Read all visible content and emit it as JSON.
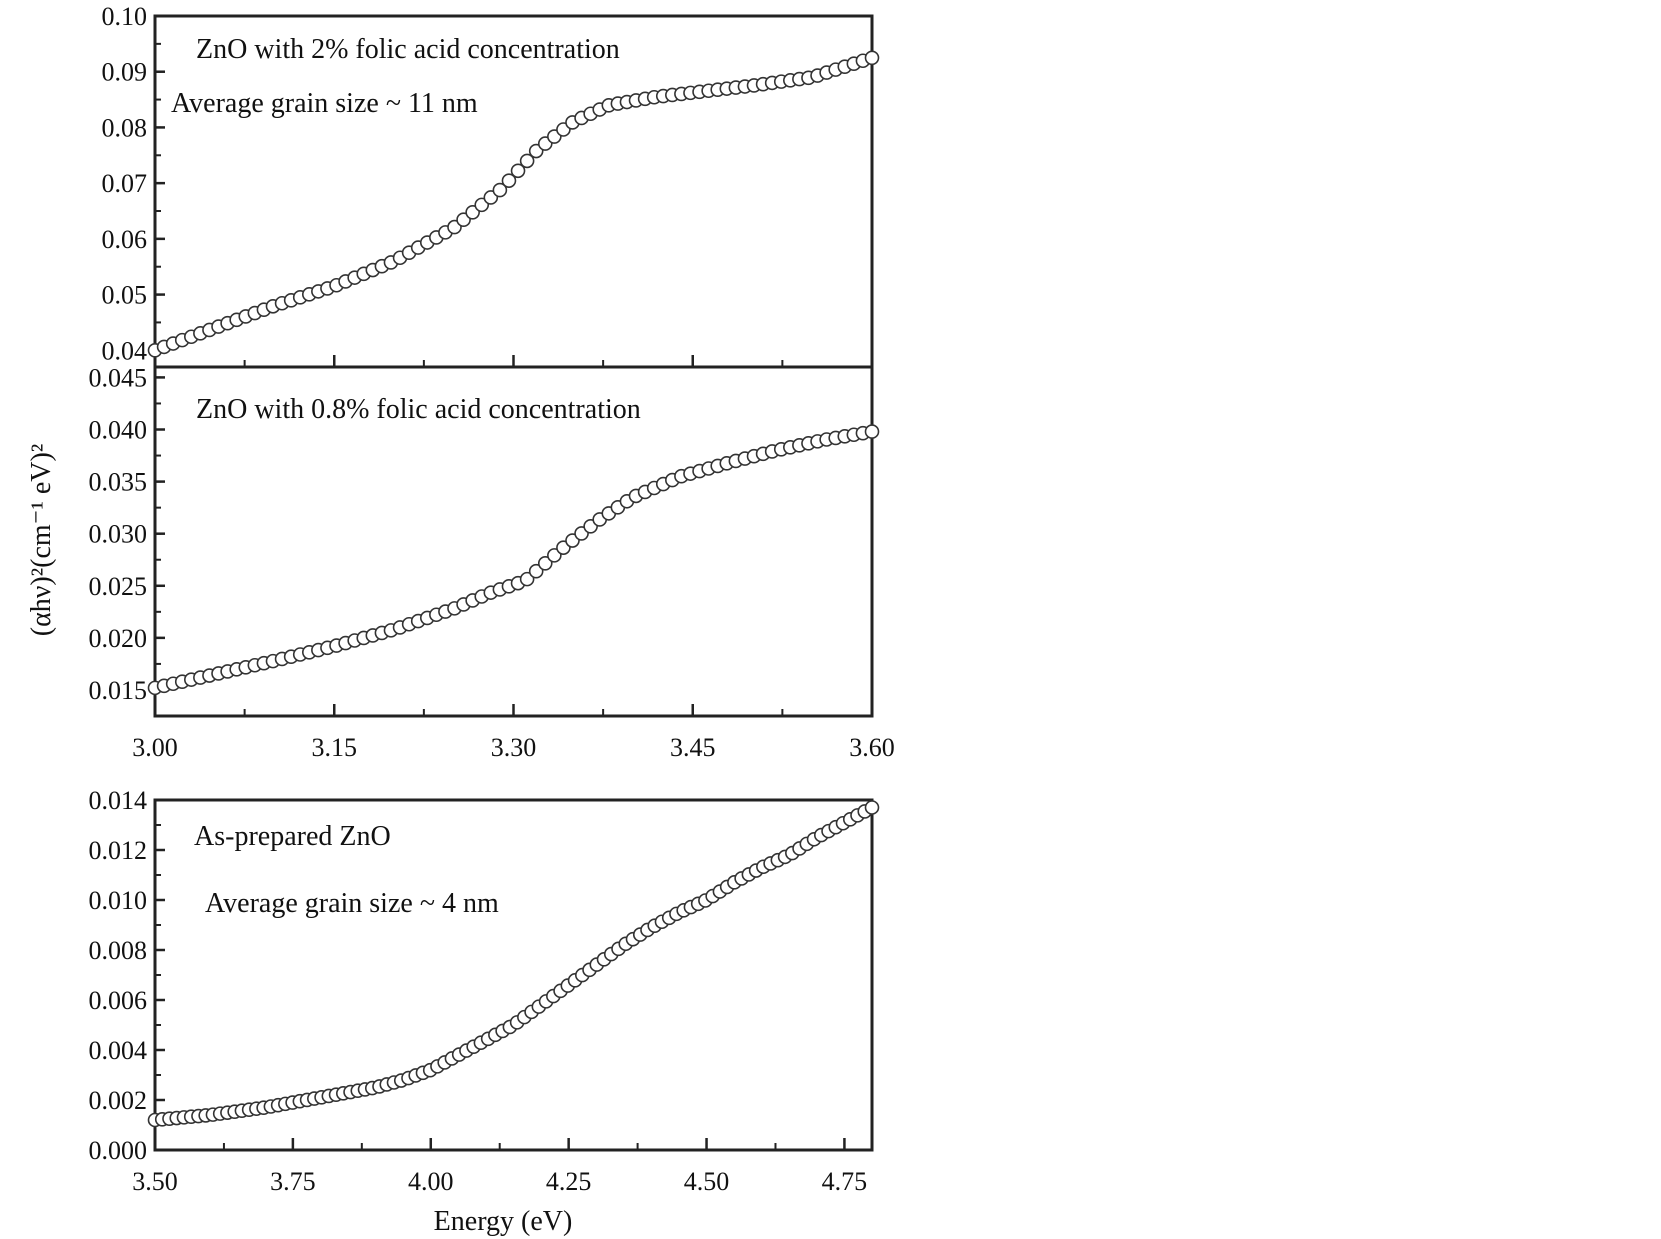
{
  "chart_data": [
    {
      "type": "scatter",
      "annotations": [
        "ZnO with 2% folic acid concentration",
        "Average grain size ~ 11 nm"
      ],
      "xlim": [
        3.0,
        3.6
      ],
      "ylim": [
        0.037,
        0.1
      ],
      "x_ticks": [
        3.0,
        3.15,
        3.3,
        3.45,
        3.6
      ],
      "x_tick_labels": [],
      "y_ticks": [
        0.04,
        0.05,
        0.06,
        0.07,
        0.08,
        0.09,
        0.1
      ],
      "y_tick_labels": [
        "0.04",
        "0.05",
        "0.06",
        "0.07",
        "0.08",
        "0.09",
        "0.10"
      ],
      "marker": "open-circle",
      "grid": false,
      "curve": {
        "x": [
          3.0,
          3.05,
          3.1,
          3.15,
          3.2,
          3.25,
          3.29,
          3.32,
          3.35,
          3.38,
          3.42,
          3.46,
          3.5,
          3.55,
          3.6
        ],
        "y": [
          0.04,
          0.044,
          0.048,
          0.0515,
          0.056,
          0.062,
          0.069,
          0.076,
          0.081,
          0.084,
          0.0855,
          0.0865,
          0.0875,
          0.089,
          0.0925
        ]
      }
    },
    {
      "type": "scatter",
      "annotations": [
        "ZnO with 0.8% folic acid concentration"
      ],
      "xlim": [
        3.0,
        3.6
      ],
      "ylim": [
        0.0125,
        0.046
      ],
      "x_ticks": [
        3.0,
        3.15,
        3.3,
        3.45,
        3.6
      ],
      "x_tick_labels": [
        "3.00",
        "3.15",
        "3.30",
        "3.45",
        "3.60"
      ],
      "y_ticks": [
        0.015,
        0.02,
        0.025,
        0.03,
        0.035,
        0.04,
        0.045
      ],
      "y_tick_labels": [
        "0.015",
        "0.020",
        "0.025",
        "0.030",
        "0.035",
        "0.040",
        "0.045"
      ],
      "marker": "open-circle",
      "grid": false,
      "curve": {
        "x": [
          3.0,
          3.05,
          3.1,
          3.15,
          3.2,
          3.25,
          3.28,
          3.31,
          3.34,
          3.37,
          3.4,
          3.44,
          3.48,
          3.52,
          3.56,
          3.6
        ],
        "y": [
          0.0152,
          0.0165,
          0.0178,
          0.0192,
          0.0208,
          0.0228,
          0.0243,
          0.0255,
          0.0285,
          0.0312,
          0.0335,
          0.0355,
          0.0368,
          0.038,
          0.039,
          0.0398
        ]
      }
    },
    {
      "type": "scatter",
      "annotations": [
        "As-prepared ZnO",
        "Average grain size ~ 4 nm"
      ],
      "xlabel": "Energy (eV)",
      "xlim": [
        3.5,
        4.8
      ],
      "ylim": [
        0.0,
        0.014
      ],
      "x_ticks": [
        3.5,
        3.75,
        4.0,
        4.25,
        4.5,
        4.75
      ],
      "x_tick_labels": [
        "3.50",
        "3.75",
        "4.00",
        "4.25",
        "4.50",
        "4.75"
      ],
      "y_ticks": [
        0.0,
        0.002,
        0.004,
        0.006,
        0.008,
        0.01,
        0.012,
        0.014
      ],
      "y_tick_labels": [
        "0.000",
        "0.002",
        "0.004",
        "0.006",
        "0.008",
        "0.010",
        "0.012",
        "0.014"
      ],
      "marker": "open-circle",
      "grid": false,
      "curve": {
        "x": [
          3.5,
          3.6,
          3.7,
          3.8,
          3.9,
          3.95,
          4.0,
          4.05,
          4.1,
          4.15,
          4.2,
          4.25,
          4.3,
          4.35,
          4.4,
          4.45,
          4.5,
          4.55,
          4.6,
          4.65,
          4.7,
          4.75,
          4.8
        ],
        "y": [
          0.0012,
          0.0014,
          0.0017,
          0.0021,
          0.0025,
          0.0028,
          0.0032,
          0.0038,
          0.0044,
          0.005,
          0.0058,
          0.0066,
          0.0074,
          0.0082,
          0.0089,
          0.0095,
          0.01,
          0.0107,
          0.0113,
          0.0118,
          0.0125,
          0.0131,
          0.0137
        ]
      }
    }
  ],
  "shared_ylabel": "(αhν)²(cm⁻¹ eV)²"
}
